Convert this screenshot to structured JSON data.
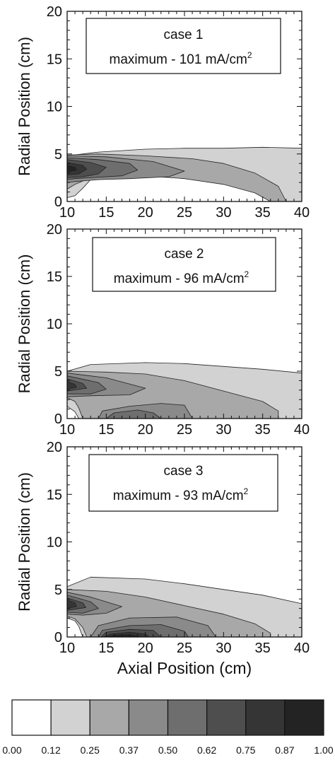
{
  "chart_data": [
    {
      "type": "heatmap",
      "subtype": "filled-contour",
      "annotation": {
        "case_label": "case 1",
        "max_label": "maximum - 101 mA/cm",
        "max_unit_exp": "2"
      },
      "xlabel": "",
      "ylabel": "Radial Position (cm)",
      "xlim": [
        10,
        40
      ],
      "ylim": [
        0,
        20
      ],
      "xticks": [
        10,
        15,
        20,
        25,
        30,
        35,
        40
      ],
      "yticks": [
        0,
        5,
        10,
        15,
        20
      ],
      "contours": [
        {
          "level": 0.12,
          "points": [
            [
              10,
              0.4
            ],
            [
              10,
              4.8
            ],
            [
              14,
              5.2
            ],
            [
              20,
              5.5
            ],
            [
              25,
              5.6
            ],
            [
              30,
              5.6
            ],
            [
              35,
              5.7
            ],
            [
              40,
              5.6
            ],
            [
              40,
              0
            ],
            [
              38,
              0
            ],
            [
              36,
              0.8
            ],
            [
              33,
              1.6
            ],
            [
              28,
              2.3
            ],
            [
              22,
              2.7
            ],
            [
              18,
              2.9
            ],
            [
              15,
              2.8
            ],
            [
              13,
              2.3
            ],
            [
              12,
              1.4
            ],
            [
              11,
              0.6
            ]
          ]
        },
        {
          "level": 0.25,
          "points": [
            [
              10,
              1.3
            ],
            [
              10,
              4.9
            ],
            [
              14,
              5.0
            ],
            [
              20,
              4.8
            ],
            [
              26,
              4.5
            ],
            [
              30,
              4.0
            ],
            [
              34,
              3.0
            ],
            [
              37,
              1.6
            ],
            [
              38,
              0
            ],
            [
              36,
              0
            ],
            [
              34,
              0.9
            ],
            [
              30,
              1.8
            ],
            [
              25,
              2.4
            ],
            [
              20,
              2.7
            ],
            [
              16,
              2.8
            ],
            [
              13,
              2.5
            ],
            [
              11,
              1.8
            ]
          ]
        },
        {
          "level": 0.37,
          "points": [
            [
              10,
              2.0
            ],
            [
              10,
              4.8
            ],
            [
              15,
              4.7
            ],
            [
              21,
              4.2
            ],
            [
              25,
              3.2
            ],
            [
              23,
              2.6
            ],
            [
              18,
              2.4
            ],
            [
              14,
              2.3
            ],
            [
              11,
              2.1
            ]
          ]
        },
        {
          "level": 0.5,
          "points": [
            [
              10,
              2.3
            ],
            [
              10,
              4.6
            ],
            [
              14,
              4.4
            ],
            [
              18,
              4.0
            ],
            [
              19,
              3.3
            ],
            [
              17,
              2.7
            ],
            [
              13,
              2.5
            ],
            [
              11,
              2.4
            ]
          ]
        },
        {
          "level": 0.62,
          "points": [
            [
              10,
              2.5
            ],
            [
              10,
              4.4
            ],
            [
              13,
              4.1
            ],
            [
              15,
              3.6
            ],
            [
              14,
              2.9
            ],
            [
              12,
              2.6
            ]
          ]
        },
        {
          "level": 0.75,
          "points": [
            [
              10,
              2.8
            ],
            [
              10,
              4.1
            ],
            [
              12,
              3.8
            ],
            [
              12.5,
              3.4
            ],
            [
              11.5,
              2.9
            ]
          ]
        },
        {
          "level": 0.87,
          "points": [
            [
              10,
              3.1
            ],
            [
              10,
              3.8
            ],
            [
              11,
              3.6
            ],
            [
              11.2,
              3.3
            ]
          ]
        }
      ]
    },
    {
      "type": "heatmap",
      "subtype": "filled-contour",
      "annotation": {
        "case_label": "case 2",
        "max_label": "maximum - 96 mA/cm",
        "max_unit_exp": "2"
      },
      "xlabel": "",
      "ylabel": "Radial Position (cm)",
      "xlim": [
        10,
        40
      ],
      "ylim": [
        0,
        20
      ],
      "xticks": [
        10,
        15,
        20,
        25,
        30,
        35,
        40
      ],
      "yticks": [
        0,
        5,
        10,
        15,
        20
      ],
      "contours": [
        {
          "level": 0.12,
          "points": [
            [
              10,
              1.3
            ],
            [
              10,
              5.0
            ],
            [
              13,
              5.7
            ],
            [
              20,
              5.9
            ],
            [
              25,
              5.8
            ],
            [
              30,
              5.5
            ],
            [
              35,
              5.2
            ],
            [
              40,
              4.8
            ],
            [
              40,
              0
            ],
            [
              11.5,
              0
            ],
            [
              11,
              0.7
            ]
          ]
        },
        {
          "level": 0.25,
          "points": [
            [
              10,
              2.2
            ],
            [
              10,
              5.0
            ],
            [
              15,
              4.9
            ],
            [
              20,
              4.7
            ],
            [
              25,
              4.0
            ],
            [
              30,
              2.9
            ],
            [
              35,
              1.8
            ],
            [
              37,
              0.8
            ],
            [
              37,
              0
            ],
            [
              12,
              0
            ],
            [
              11.5,
              1.1
            ],
            [
              11,
              1.8
            ]
          ]
        },
        {
          "level": 0.37,
          "points": [
            [
              10,
              2.3
            ],
            [
              10,
              4.8
            ],
            [
              15,
              4.3
            ],
            [
              20,
              3.2
            ],
            [
              18,
              2.5
            ],
            [
              13,
              2.4
            ]
          ]
        },
        {
          "level": 0.37,
          "points": [
            [
              14,
              0
            ],
            [
              14.5,
              0.8
            ],
            [
              18,
              1.3
            ],
            [
              22,
              1.6
            ],
            [
              25,
              1.4
            ],
            [
              26,
              0
            ]
          ]
        },
        {
          "level": 0.5,
          "points": [
            [
              10,
              2.6
            ],
            [
              10,
              4.5
            ],
            [
              14,
              3.8
            ],
            [
              15,
              3.1
            ],
            [
              13,
              2.6
            ]
          ]
        },
        {
          "level": 0.5,
          "points": [
            [
              15,
              0
            ],
            [
              16,
              0.6
            ],
            [
              19,
              0.9
            ],
            [
              21,
              0.6
            ],
            [
              22,
              0
            ]
          ]
        },
        {
          "level": 0.62,
          "points": [
            [
              10,
              2.9
            ],
            [
              10,
              4.2
            ],
            [
              12,
              3.7
            ],
            [
              12.5,
              3.2
            ]
          ]
        },
        {
          "level": 0.75,
          "points": [
            [
              10,
              3.1
            ],
            [
              10,
              3.9
            ],
            [
              11,
              3.6
            ],
            [
              11.2,
              3.3
            ]
          ]
        }
      ]
    },
    {
      "type": "heatmap",
      "subtype": "filled-contour",
      "annotation": {
        "case_label": "case 3",
        "max_label": "maximum - 93 mA/cm",
        "max_unit_exp": "2"
      },
      "xlabel": "Axial Position (cm)",
      "ylabel": "Radial Position (cm)",
      "xlim": [
        10,
        40
      ],
      "ylim": [
        0,
        20
      ],
      "xticks": [
        10,
        15,
        20,
        25,
        30,
        35,
        40
      ],
      "yticks": [
        0,
        5,
        10,
        15,
        20
      ],
      "contours": [
        {
          "level": 0.12,
          "points": [
            [
              10,
              2.0
            ],
            [
              10,
              5.3
            ],
            [
              13,
              6.3
            ],
            [
              20,
              6.1
            ],
            [
              25,
              5.6
            ],
            [
              30,
              5.0
            ],
            [
              35,
              4.4
            ],
            [
              40,
              3.5
            ],
            [
              40,
              0
            ],
            [
              12,
              0
            ],
            [
              11.5,
              1.1
            ],
            [
              11,
              1.7
            ]
          ]
        },
        {
          "level": 0.25,
          "points": [
            [
              10,
              2.2
            ],
            [
              10,
              5.0
            ],
            [
              15,
              4.8
            ],
            [
              20,
              4.2
            ],
            [
              25,
              3.3
            ],
            [
              30,
              2.4
            ],
            [
              34,
              1.4
            ],
            [
              36,
              0.4
            ],
            [
              36,
              0
            ],
            [
              12.5,
              0
            ],
            [
              12,
              1.0
            ],
            [
              11,
              1.9
            ]
          ]
        },
        {
          "level": 0.37,
          "points": [
            [
              10,
              2.4
            ],
            [
              10,
              4.7
            ],
            [
              13,
              4.2
            ],
            [
              17,
              3.2
            ],
            [
              15,
              2.5
            ],
            [
              12,
              2.3
            ]
          ]
        },
        {
          "level": 0.37,
          "points": [
            [
              13,
              0
            ],
            [
              14,
              1.2
            ],
            [
              18,
              2.0
            ],
            [
              24,
              2.1
            ],
            [
              28,
              1.2
            ],
            [
              29,
              0
            ]
          ]
        },
        {
          "level": 0.5,
          "points": [
            [
              10,
              2.6
            ],
            [
              10,
              4.4
            ],
            [
              13,
              3.7
            ],
            [
              14,
              3.0
            ],
            [
              12,
              2.5
            ]
          ]
        },
        {
          "level": 0.5,
          "points": [
            [
              14,
              0
            ],
            [
              14.5,
              0.7
            ],
            [
              18,
              1.2
            ],
            [
              22,
              1.3
            ],
            [
              25,
              0.6
            ],
            [
              25.5,
              0
            ]
          ]
        },
        {
          "level": 0.62,
          "points": [
            [
              10,
              2.8
            ],
            [
              10,
              4.1
            ],
            [
              12,
              3.6
            ],
            [
              12.4,
              3.1
            ]
          ]
        },
        {
          "level": 0.62,
          "points": [
            [
              14.3,
              0
            ],
            [
              15,
              0.5
            ],
            [
              18,
              0.8
            ],
            [
              21,
              0.7
            ],
            [
              22,
              0
            ]
          ]
        },
        {
          "level": 0.75,
          "points": [
            [
              10,
              3.0
            ],
            [
              10,
              3.9
            ],
            [
              11,
              3.6
            ],
            [
              11.2,
              3.2
            ]
          ]
        },
        {
          "level": 0.75,
          "points": [
            [
              14.6,
              0
            ],
            [
              15.5,
              0.3
            ],
            [
              18,
              0.5
            ],
            [
              20,
              0.3
            ],
            [
              20.5,
              0
            ]
          ]
        },
        {
          "level": 0.87,
          "points": [
            [
              15,
              0
            ],
            [
              16,
              0.18
            ],
            [
              18,
              0.25
            ],
            [
              19.5,
              0
            ]
          ]
        }
      ]
    }
  ],
  "colorbar": {
    "ticks": [
      "0.00",
      "0.12",
      "0.25",
      "0.37",
      "0.50",
      "0.62",
      "0.75",
      "0.87",
      "1.00"
    ],
    "fills": [
      "#ffffff",
      "#d2d2d2",
      "#a8a8a8",
      "#8a8a8a",
      "#6e6e6e",
      "#4e4e4e",
      "#353535",
      "#232323"
    ]
  }
}
